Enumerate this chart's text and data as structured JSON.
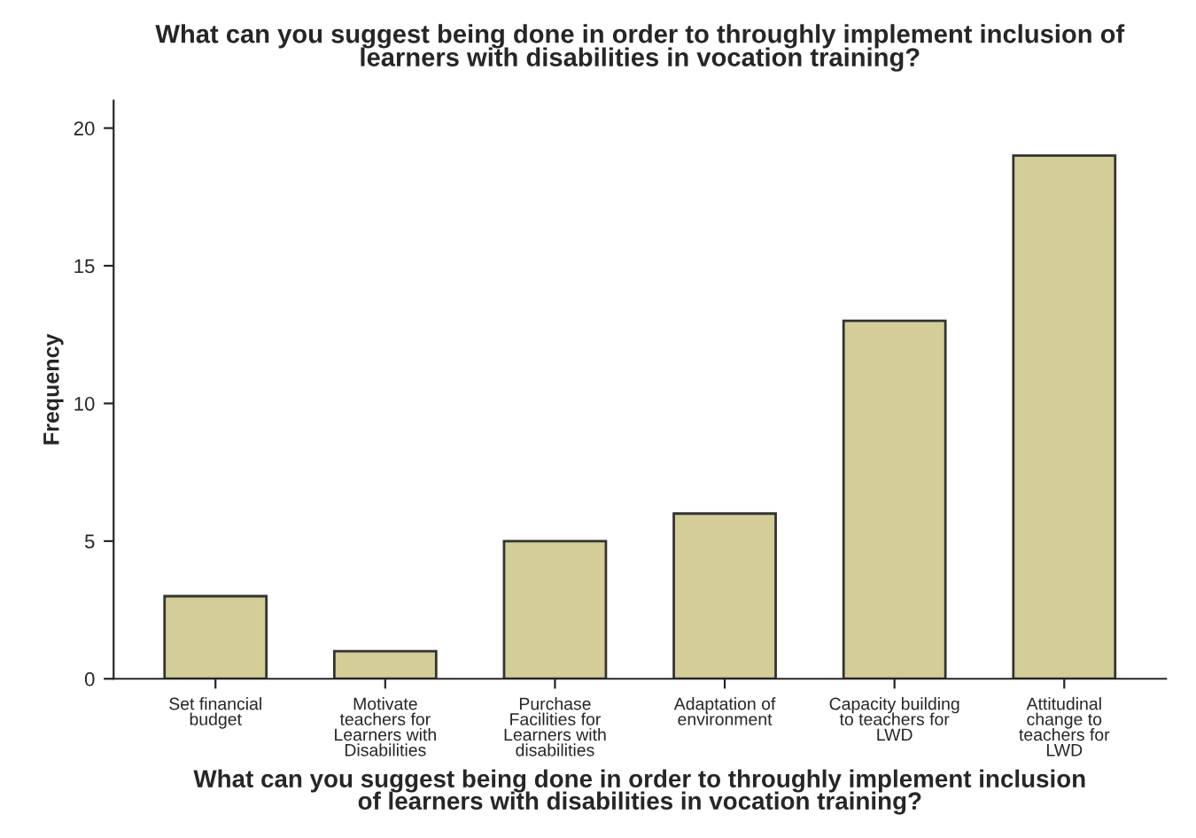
{
  "chart_data": {
    "type": "bar",
    "title": "What can you suggest being done in order to throughly implement inclusion of\nlearners with disabilities in vocation training?",
    "xlabel": "What can you suggest being done in order to throughly implement inclusion\nof learners with disabilities in vocation training?",
    "ylabel": "Frequency",
    "categories": [
      "Set financial\nbudget",
      "Motivate\nteachers for\nLearners with\nDisabilities",
      "Purchase\nFacilities for\nLearners with\ndisabilities",
      "Adaptation of\nenvironment",
      "Capacity building\nto teachers for\nLWD",
      "Attitudinal\nchange to\nteachers for\nLWD"
    ],
    "values": [
      3,
      1,
      5,
      6,
      13,
      19
    ],
    "color": "#d3ce97",
    "ylim": [
      0,
      21
    ],
    "yticks": [
      0,
      5,
      10,
      15,
      20
    ],
    "grid": false,
    "legend": false
  }
}
